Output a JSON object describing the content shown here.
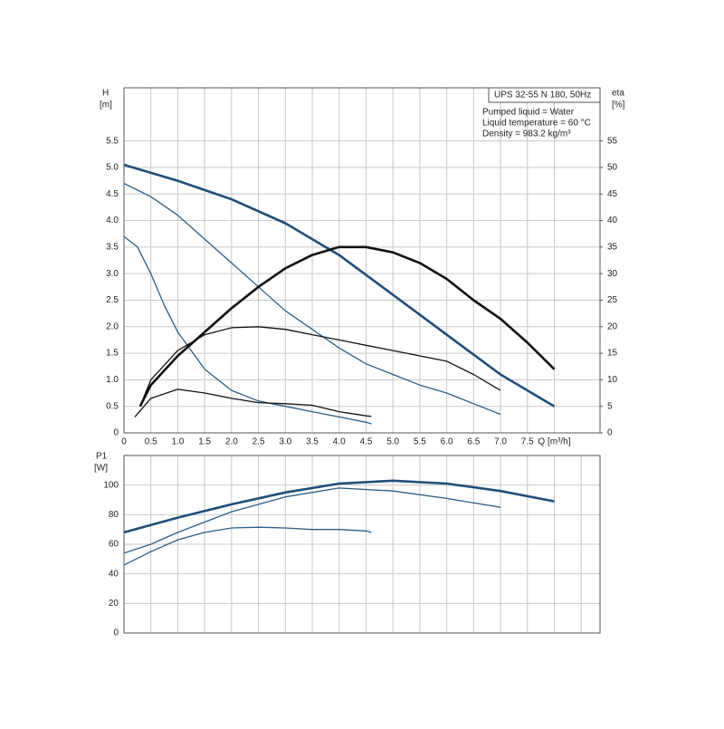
{
  "chart_data": [
    {
      "type": "line",
      "ylabel": "H",
      "yunit": "[m]",
      "y2label": "eta",
      "y2unit": "[%]",
      "info": [
        "UPS 32-55 N 180, 50Hz",
        "Pumped liquid = Water",
        "Liquid temperature = 60 °C",
        "Density = 983.2 kg/m³"
      ],
      "xlim": [
        0,
        8.85
      ],
      "ylim": [
        0,
        6.5
      ],
      "y2lim": [
        0,
        65
      ],
      "grid": true,
      "xticks": [
        0,
        0.5,
        {
          "value": 1,
          "label": "1.0"
        },
        1.5,
        {
          "value": 2,
          "label": "2.0"
        },
        2.5,
        {
          "value": 3,
          "label": "3.0"
        },
        3.5,
        {
          "value": 4,
          "label": "4.0"
        },
        4.5,
        {
          "value": 5,
          "label": "5.0"
        },
        5.5,
        {
          "value": 6,
          "label": "6.0"
        },
        6.5,
        {
          "value": 7,
          "label": "7.0"
        },
        7.5,
        {
          "value": 8,
          "label": "Q [m³/h]"
        }
      ],
      "yticks": [
        0,
        0.5,
        {
          "value": 1,
          "label": "1.0"
        },
        1.5,
        {
          "value": 2,
          "label": "2.0"
        },
        2.5,
        {
          "value": 3,
          "label": "3.0"
        },
        3.5,
        {
          "value": 4,
          "label": "4.0"
        },
        4.5,
        {
          "value": 5,
          "label": "5.0"
        },
        5.5
      ],
      "y2ticks": [
        0,
        5,
        10,
        15,
        20,
        25,
        30,
        35,
        40,
        45,
        50,
        55
      ],
      "series": [
        {
          "color": "#1f4e79",
          "width": 2.6,
          "x": [
            0,
            1,
            2,
            3,
            4,
            5,
            6,
            7,
            8
          ],
          "values": [
            5.05,
            4.75,
            4.4,
            3.95,
            3.35,
            2.6,
            1.85,
            1.1,
            0.5
          ]
        },
        {
          "color": "#2b5d86",
          "width": 1.3,
          "x": [
            0,
            0.5,
            1,
            1.5,
            2,
            2.5,
            3,
            3.5,
            4,
            4.5,
            5,
            5.5,
            6,
            6.5,
            7
          ],
          "values": [
            4.7,
            4.45,
            4.1,
            3.65,
            3.2,
            2.75,
            2.3,
            1.95,
            1.6,
            1.3,
            1.1,
            0.9,
            0.75,
            0.55,
            0.35
          ]
        },
        {
          "color": "#2b5d86",
          "width": 1.3,
          "x": [
            0,
            0.25,
            0.5,
            0.75,
            1,
            1.5,
            2,
            2.5,
            3,
            3.5,
            4,
            4.5,
            4.6
          ],
          "values": [
            3.7,
            3.5,
            3.0,
            2.4,
            1.9,
            1.2,
            0.8,
            0.6,
            0.5,
            0.4,
            0.3,
            0.2,
            0.17
          ]
        },
        {
          "color": "#111111",
          "width": 2.6,
          "axis": "y2",
          "x": [
            0.3,
            0.5,
            1,
            1.5,
            2,
            2.5,
            3,
            3.5,
            4,
            4.5,
            5,
            5.5,
            6,
            6.5,
            7,
            7.5,
            8
          ],
          "values": [
            5,
            9,
            14.5,
            19,
            23.5,
            27.5,
            31,
            33.5,
            35,
            35,
            34,
            32,
            29,
            25,
            21.5,
            17,
            12
          ]
        },
        {
          "color": "#111111",
          "width": 1.3,
          "axis": "y2",
          "x": [
            0.3,
            0.5,
            1,
            1.5,
            2,
            2.5,
            3,
            3.5,
            4,
            4.5,
            5,
            5.5,
            6,
            6.5,
            7
          ],
          "values": [
            5,
            10,
            15.5,
            18.5,
            19.8,
            20,
            19.5,
            18.5,
            17.5,
            16.5,
            15.5,
            14.5,
            13.5,
            11,
            8
          ]
        },
        {
          "color": "#111111",
          "width": 1.3,
          "axis": "y2",
          "x": [
            0.2,
            0.5,
            1,
            1.5,
            2,
            2.5,
            3,
            3.5,
            4,
            4.5,
            4.6
          ],
          "values": [
            3,
            6.5,
            8.2,
            7.5,
            6.5,
            5.7,
            5.5,
            5.2,
            4,
            3.2,
            3.1
          ]
        }
      ]
    },
    {
      "type": "line",
      "ylabel": "P1",
      "yunit": "[W]",
      "xlim": [
        0,
        8.85
      ],
      "ylim": [
        0,
        120
      ],
      "grid": true,
      "xgrid": [
        0,
        0.5,
        1,
        1.5,
        2,
        2.5,
        3,
        3.5,
        4,
        4.5,
        5,
        5.5,
        6,
        6.5,
        7,
        7.5,
        8,
        8.5
      ],
      "yticks": [
        0,
        20,
        40,
        60,
        80,
        100
      ],
      "series": [
        {
          "color": "#1f4e79",
          "width": 2.6,
          "x": [
            0,
            1,
            2,
            3,
            4,
            5,
            6,
            7,
            8
          ],
          "values": [
            68,
            78,
            87,
            95,
            101,
            103,
            101,
            96,
            89
          ]
        },
        {
          "color": "#2b5d86",
          "width": 1.3,
          "x": [
            0,
            0.5,
            1,
            2,
            3,
            4,
            5,
            6,
            7
          ],
          "values": [
            54,
            60,
            68,
            82,
            92,
            98,
            96,
            91,
            85
          ]
        },
        {
          "color": "#2b5d86",
          "width": 1.3,
          "x": [
            0,
            0.5,
            1,
            1.5,
            2,
            2.5,
            3,
            3.5,
            4,
            4.5,
            4.6
          ],
          "values": [
            46,
            55,
            63,
            68,
            71,
            71.5,
            71,
            70,
            70,
            69,
            68
          ]
        }
      ]
    }
  ]
}
